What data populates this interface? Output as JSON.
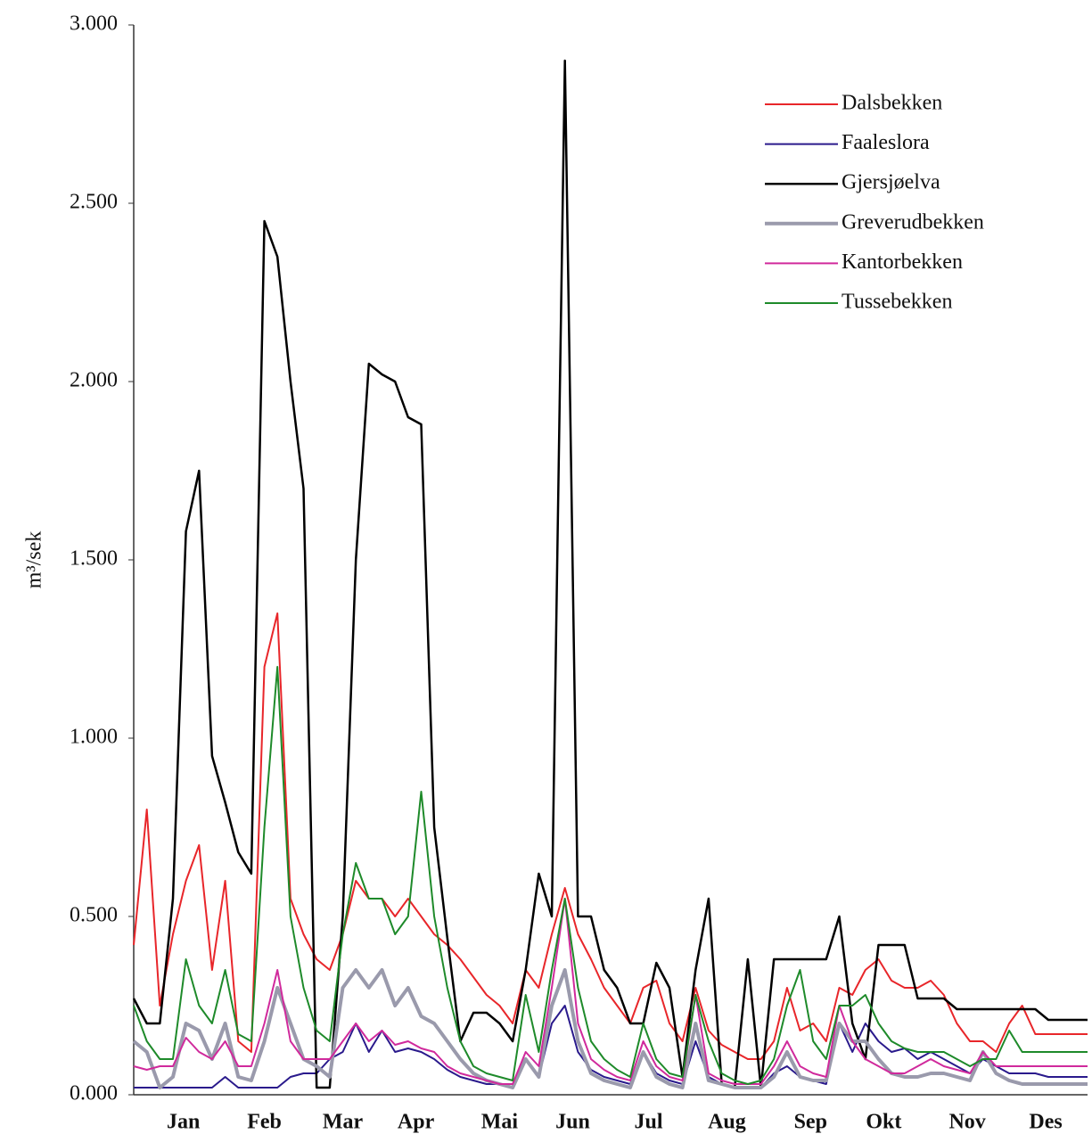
{
  "chart_data": {
    "type": "line",
    "y_label": "m³/sek",
    "xlim": [
      0,
      365
    ],
    "ylim": [
      0,
      3
    ],
    "yticks": [
      {
        "value": 0,
        "label": "0.000"
      },
      {
        "value": 0.5,
        "label": "0.500"
      },
      {
        "value": 1,
        "label": "1.000"
      },
      {
        "value": 1.5,
        "label": "1.500"
      },
      {
        "value": 2,
        "label": "2.000"
      },
      {
        "value": 2.5,
        "label": "2.500"
      },
      {
        "value": 3,
        "label": "3.000"
      }
    ],
    "xticks": [
      {
        "value": 19,
        "label": "Jan"
      },
      {
        "value": 50,
        "label": "Feb"
      },
      {
        "value": 80,
        "label": "Mar"
      },
      {
        "value": 108,
        "label": "Apr"
      },
      {
        "value": 140,
        "label": "Mai"
      },
      {
        "value": 168,
        "label": "Jun"
      },
      {
        "value": 197,
        "label": "Jul"
      },
      {
        "value": 227,
        "label": "Aug"
      },
      {
        "value": 259,
        "label": "Sep"
      },
      {
        "value": 287,
        "label": "Okt"
      },
      {
        "value": 319,
        "label": "Nov"
      },
      {
        "value": 349,
        "label": "Des"
      }
    ],
    "legend": "upper right",
    "x": [
      0,
      5,
      10,
      15,
      20,
      25,
      30,
      35,
      40,
      45,
      50,
      55,
      60,
      65,
      70,
      75,
      80,
      85,
      90,
      95,
      100,
      105,
      110,
      115,
      120,
      125,
      130,
      135,
      140,
      145,
      150,
      155,
      160,
      165,
      170,
      175,
      180,
      185,
      190,
      195,
      200,
      205,
      210,
      215,
      220,
      225,
      230,
      235,
      240,
      245,
      250,
      255,
      260,
      265,
      270,
      275,
      280,
      285,
      290,
      295,
      300,
      305,
      310,
      315,
      320,
      325,
      330,
      335,
      340,
      345,
      350,
      355,
      360,
      365
    ],
    "series": [
      {
        "name": "Dalsbekken",
        "color": "#e8262a",
        "width": 2,
        "values": [
          0.42,
          0.8,
          0.25,
          0.45,
          0.6,
          0.7,
          0.35,
          0.6,
          0.15,
          0.12,
          1.2,
          1.35,
          0.55,
          0.45,
          0.38,
          0.35,
          0.45,
          0.6,
          0.55,
          0.55,
          0.5,
          0.55,
          0.5,
          0.45,
          0.42,
          0.38,
          0.33,
          0.28,
          0.25,
          0.2,
          0.35,
          0.3,
          0.45,
          0.58,
          0.45,
          0.38,
          0.3,
          0.25,
          0.2,
          0.3,
          0.32,
          0.2,
          0.15,
          0.3,
          0.18,
          0.14,
          0.12,
          0.1,
          0.1,
          0.15,
          0.3,
          0.18,
          0.2,
          0.15,
          0.3,
          0.28,
          0.35,
          0.38,
          0.32,
          0.3,
          0.3,
          0.32,
          0.28,
          0.2,
          0.15,
          0.15,
          0.12,
          0.2,
          0.25,
          0.17,
          0.17,
          0.17,
          0.17,
          0.17
        ]
      },
      {
        "name": "Faaleslora",
        "color": "#2a1a8c",
        "width": 2,
        "values": [
          0.02,
          0.02,
          0.02,
          0.02,
          0.02,
          0.02,
          0.02,
          0.05,
          0.02,
          0.02,
          0.02,
          0.02,
          0.05,
          0.06,
          0.06,
          0.1,
          0.12,
          0.2,
          0.12,
          0.18,
          0.12,
          0.13,
          0.12,
          0.1,
          0.07,
          0.05,
          0.04,
          0.03,
          0.03,
          0.03,
          0.1,
          0.05,
          0.2,
          0.25,
          0.12,
          0.07,
          0.05,
          0.04,
          0.03,
          0.12,
          0.06,
          0.04,
          0.03,
          0.15,
          0.05,
          0.03,
          0.02,
          0.02,
          0.02,
          0.06,
          0.08,
          0.05,
          0.04,
          0.03,
          0.2,
          0.12,
          0.2,
          0.15,
          0.12,
          0.13,
          0.1,
          0.12,
          0.1,
          0.08,
          0.06,
          0.1,
          0.08,
          0.06,
          0.06,
          0.06,
          0.05,
          0.05,
          0.05,
          0.05
        ]
      },
      {
        "name": "Gjersjøelva",
        "color": "#000000",
        "width": 2.5,
        "values": [
          0.27,
          0.2,
          0.2,
          0.55,
          1.58,
          1.75,
          0.95,
          0.82,
          0.68,
          0.62,
          2.45,
          2.35,
          2.0,
          1.7,
          0.02,
          0.02,
          0.5,
          1.5,
          2.05,
          2.02,
          2.0,
          1.9,
          1.88,
          0.75,
          0.44,
          0.15,
          0.23,
          0.23,
          0.2,
          0.15,
          0.35,
          0.62,
          0.5,
          2.9,
          0.5,
          0.5,
          0.35,
          0.3,
          0.2,
          0.2,
          0.37,
          0.3,
          0.05,
          0.35,
          0.55,
          0.03,
          0.02,
          0.38,
          0.02,
          0.38,
          0.38,
          0.38,
          0.38,
          0.38,
          0.5,
          0.2,
          0.1,
          0.42,
          0.42,
          0.42,
          0.27,
          0.27,
          0.27,
          0.24,
          0.24,
          0.24,
          0.24,
          0.24,
          0.24,
          0.24,
          0.21,
          0.21,
          0.21,
          0.21
        ]
      },
      {
        "name": "Greverudbekken",
        "color": "#9a9aac",
        "width": 4,
        "values": [
          0.15,
          0.12,
          0.02,
          0.05,
          0.2,
          0.18,
          0.1,
          0.2,
          0.05,
          0.04,
          0.15,
          0.3,
          0.2,
          0.1,
          0.08,
          0.05,
          0.3,
          0.35,
          0.3,
          0.35,
          0.25,
          0.3,
          0.22,
          0.2,
          0.15,
          0.1,
          0.06,
          0.04,
          0.03,
          0.02,
          0.1,
          0.05,
          0.25,
          0.35,
          0.15,
          0.06,
          0.04,
          0.03,
          0.02,
          0.12,
          0.05,
          0.03,
          0.02,
          0.2,
          0.04,
          0.03,
          0.02,
          0.02,
          0.02,
          0.05,
          0.12,
          0.05,
          0.04,
          0.04,
          0.2,
          0.15,
          0.15,
          0.1,
          0.06,
          0.05,
          0.05,
          0.06,
          0.06,
          0.05,
          0.04,
          0.12,
          0.06,
          0.04,
          0.03,
          0.03,
          0.03,
          0.03,
          0.03,
          0.03
        ]
      },
      {
        "name": "Kantorbekken",
        "color": "#d02a9c",
        "width": 2,
        "values": [
          0.08,
          0.07,
          0.08,
          0.08,
          0.16,
          0.12,
          0.1,
          0.15,
          0.08,
          0.08,
          0.2,
          0.35,
          0.15,
          0.1,
          0.1,
          0.1,
          0.15,
          0.2,
          0.15,
          0.18,
          0.14,
          0.15,
          0.13,
          0.12,
          0.08,
          0.06,
          0.05,
          0.04,
          0.03,
          0.03,
          0.12,
          0.08,
          0.3,
          0.55,
          0.2,
          0.1,
          0.07,
          0.05,
          0.04,
          0.15,
          0.08,
          0.05,
          0.04,
          0.28,
          0.06,
          0.04,
          0.03,
          0.03,
          0.03,
          0.08,
          0.15,
          0.08,
          0.06,
          0.05,
          0.25,
          0.15,
          0.1,
          0.08,
          0.06,
          0.06,
          0.08,
          0.1,
          0.08,
          0.07,
          0.06,
          0.12,
          0.08,
          0.08,
          0.08,
          0.08,
          0.08,
          0.08,
          0.08,
          0.08
        ]
      },
      {
        "name": "Tussebekken",
        "color": "#1e8a2a",
        "width": 2,
        "values": [
          0.25,
          0.15,
          0.1,
          0.1,
          0.38,
          0.25,
          0.2,
          0.35,
          0.17,
          0.15,
          0.75,
          1.2,
          0.5,
          0.3,
          0.18,
          0.15,
          0.45,
          0.65,
          0.55,
          0.55,
          0.45,
          0.5,
          0.85,
          0.5,
          0.3,
          0.15,
          0.08,
          0.06,
          0.05,
          0.04,
          0.28,
          0.12,
          0.35,
          0.55,
          0.3,
          0.15,
          0.1,
          0.07,
          0.05,
          0.2,
          0.1,
          0.06,
          0.05,
          0.28,
          0.15,
          0.06,
          0.04,
          0.03,
          0.04,
          0.1,
          0.25,
          0.35,
          0.15,
          0.1,
          0.25,
          0.25,
          0.28,
          0.2,
          0.15,
          0.13,
          0.12,
          0.12,
          0.12,
          0.1,
          0.08,
          0.1,
          0.1,
          0.18,
          0.12,
          0.12,
          0.12,
          0.12,
          0.12,
          0.12
        ]
      }
    ]
  }
}
